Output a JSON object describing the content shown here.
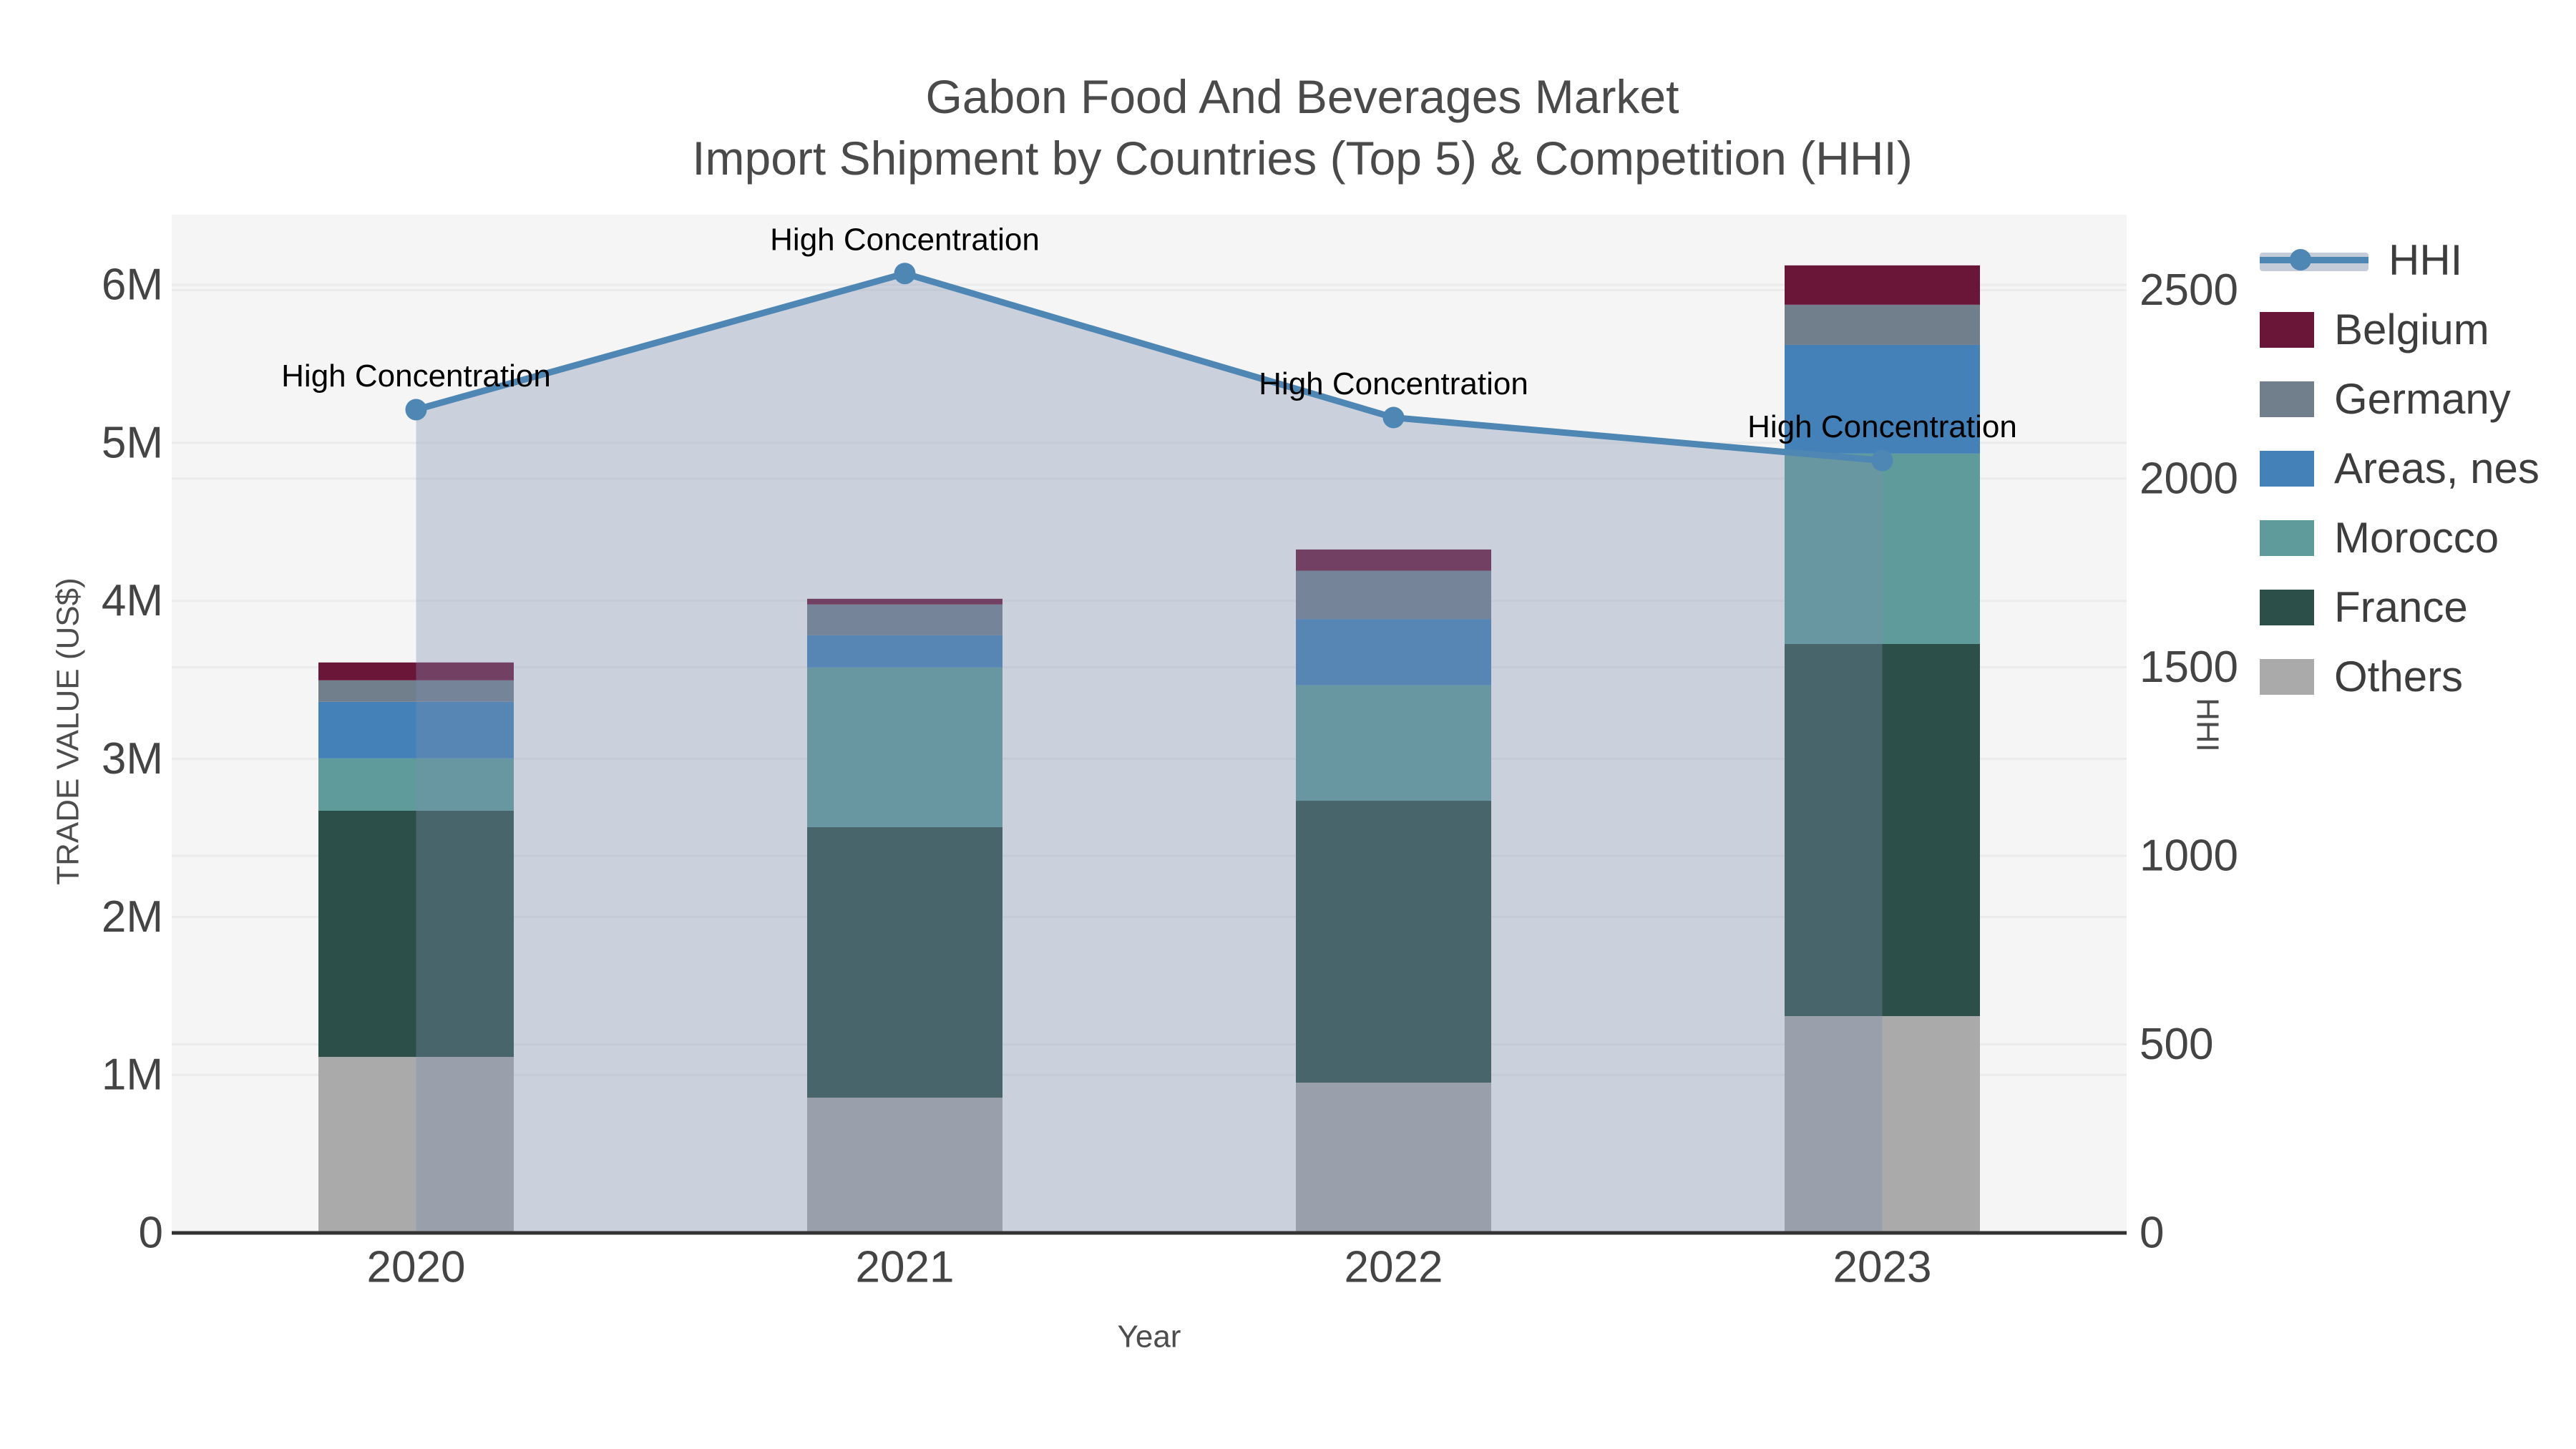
{
  "title": {
    "line1": "Gabon Food And Beverages Market",
    "line2": "Import Shipment by Countries (Top 5) & Competition (HHI)"
  },
  "chart_data": {
    "type": "combo_stacked_bar_line",
    "categories": [
      "2020",
      "2021",
      "2022",
      "2023"
    ],
    "bar_value_units": "M US$",
    "bar_series": [
      {
        "name": "Others",
        "color": "#aaaaaa",
        "values": [
          1.114,
          0.856,
          0.951,
          1.372
        ]
      },
      {
        "name": "France",
        "color": "#2d4f49",
        "values": [
          1.558,
          1.712,
          1.784,
          2.355
        ]
      },
      {
        "name": "Morocco",
        "color": "#5f9b9a",
        "values": [
          0.331,
          1.01,
          0.731,
          1.205
        ]
      },
      {
        "name": "Areas, nes",
        "color": "#4381b8",
        "values": [
          0.358,
          0.204,
          0.419,
          0.688
        ]
      },
      {
        "name": "Germany",
        "color": "#717e8c",
        "values": [
          0.136,
          0.195,
          0.306,
          0.254
        ]
      },
      {
        "name": "Belgium",
        "color": "#6a1639",
        "values": [
          0.113,
          0.036,
          0.134,
          0.249
        ]
      }
    ],
    "line_series": {
      "name": "HHI",
      "color": "#4e86b4",
      "fill_color": "rgba(125,142,174,0.35)",
      "values": [
        2183,
        2544,
        2162,
        2048
      ]
    },
    "annotation_text": "High Concentration",
    "x_axis": {
      "label": "Year",
      "ticks": [
        "2020",
        "2021",
        "2022",
        "2023"
      ]
    },
    "y_left": {
      "label": "TRADE VALUE (US$)",
      "ticks": [
        "0",
        "1M",
        "2M",
        "3M",
        "4M",
        "5M",
        "6M"
      ],
      "tick_values": [
        0,
        1,
        2,
        3,
        4,
        5,
        6
      ],
      "max": 6.444
    },
    "y_right": {
      "label": "HHI",
      "ticks": [
        "0",
        "500",
        "1000",
        "1500",
        "2000",
        "2500"
      ],
      "tick_values": [
        0,
        500,
        1000,
        1500,
        2000,
        2500
      ],
      "max": 2700
    },
    "legend": [
      {
        "name": "HHI",
        "type": "line",
        "color": "#4e86b4"
      },
      {
        "name": "Belgium",
        "type": "swatch",
        "color": "#6a1639"
      },
      {
        "name": "Germany",
        "type": "swatch",
        "color": "#717e8c"
      },
      {
        "name": "Areas, nes",
        "type": "swatch",
        "color": "#4381b8"
      },
      {
        "name": "Morocco",
        "type": "swatch",
        "color": "#5f9b9a"
      },
      {
        "name": "France",
        "type": "swatch",
        "color": "#2d4f49"
      },
      {
        "name": "Others",
        "type": "swatch",
        "color": "#aaaaaa"
      }
    ]
  }
}
